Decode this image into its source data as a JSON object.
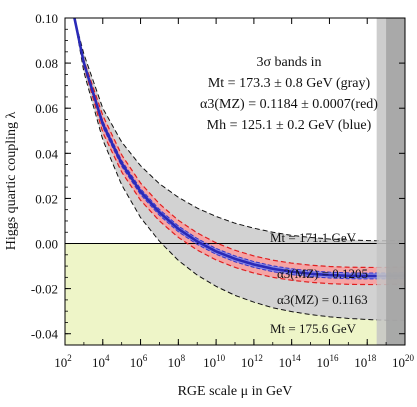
{
  "chart_data": {
    "type": "line",
    "title": "",
    "xlabel": "RGE scale μ in GeV",
    "ylabel": "Higgs quartic coupling λ",
    "xscale": "log10",
    "xlim": [
      100,
      1e+20
    ],
    "ylim": [
      -0.045,
      0.1
    ],
    "grid": false,
    "x_ticks": [
      {
        "exp": 2,
        "label": "10",
        "sup": "2"
      },
      {
        "exp": 4,
        "label": "10",
        "sup": "4"
      },
      {
        "exp": 6,
        "label": "10",
        "sup": "6"
      },
      {
        "exp": 8,
        "label": "10",
        "sup": "8"
      },
      {
        "exp": 10,
        "label": "10",
        "sup": "10"
      },
      {
        "exp": 12,
        "label": "10",
        "sup": "12"
      },
      {
        "exp": 14,
        "label": "10",
        "sup": "14"
      },
      {
        "exp": 16,
        "label": "10",
        "sup": "16"
      },
      {
        "exp": 18,
        "label": "10",
        "sup": "18"
      },
      {
        "exp": 20,
        "label": "10",
        "sup": "20"
      }
    ],
    "y_ticks": [
      {
        "value": 0.1,
        "label": "0.10"
      },
      {
        "value": 0.08,
        "label": "0.08"
      },
      {
        "value": 0.06,
        "label": "0.06"
      },
      {
        "value": 0.04,
        "label": "0.04"
      },
      {
        "value": 0.02,
        "label": "0.02"
      },
      {
        "value": 0.0,
        "label": "0.00"
      },
      {
        "value": -0.02,
        "label": "-0.02"
      },
      {
        "value": -0.04,
        "label": "-0.04"
      }
    ],
    "instability_region": {
      "below_lambda": 0.0,
      "color": "#eef5c8"
    },
    "planck_bands": [
      {
        "x_from": 3.16e+18,
        "x_to": 1e+20,
        "color": "#c4c4c4"
      },
      {
        "x_from": 1e+19,
        "x_to": 1e+20,
        "color": "#a2a2a2"
      }
    ],
    "series": [
      {
        "role": "gray band upper edge",
        "values_key": "Mt = 171.1 GeV",
        "color": "#111111",
        "dash": "dashed",
        "points": [
          [
            2.5,
            0.1
          ],
          [
            3,
            0.084
          ],
          [
            4,
            0.06
          ],
          [
            5,
            0.045
          ],
          [
            6,
            0.0345
          ],
          [
            7,
            0.0265
          ],
          [
            8,
            0.0205
          ],
          [
            9,
            0.0157
          ],
          [
            10,
            0.012
          ],
          [
            11,
            0.009
          ],
          [
            12,
            0.0068
          ],
          [
            13,
            0.005
          ],
          [
            14,
            0.0036
          ],
          [
            15,
            0.0027
          ],
          [
            16,
            0.002
          ],
          [
            17,
            0.0016
          ],
          [
            18,
            0.0013
          ],
          [
            19,
            0.0012
          ],
          [
            20,
            0.0012
          ]
        ]
      },
      {
        "role": "gray band lower edge",
        "values_key": "Mt = 175.6 GeV",
        "color": "#111111",
        "dash": "dashed",
        "points": [
          [
            2.5,
            0.1
          ],
          [
            3,
            0.076
          ],
          [
            4,
            0.046
          ],
          [
            5,
            0.026
          ],
          [
            6,
            0.0115
          ],
          [
            7,
            0.001
          ],
          [
            8,
            -0.0075
          ],
          [
            9,
            -0.014
          ],
          [
            10,
            -0.019
          ],
          [
            11,
            -0.023
          ],
          [
            12,
            -0.026
          ],
          [
            13,
            -0.0285
          ],
          [
            14,
            -0.0302
          ],
          [
            15,
            -0.0315
          ],
          [
            16,
            -0.0325
          ],
          [
            17,
            -0.0332
          ],
          [
            18,
            -0.0337
          ],
          [
            19,
            -0.034
          ],
          [
            20,
            -0.034
          ]
        ]
      },
      {
        "role": "central value",
        "color": "#2a2ab8",
        "dash": "solid",
        "points": [
          [
            2.5,
            0.1
          ],
          [
            3,
            0.08
          ],
          [
            4,
            0.053
          ],
          [
            5,
            0.0355
          ],
          [
            6,
            0.023
          ],
          [
            7,
            0.0138
          ],
          [
            8,
            0.0065
          ],
          [
            9,
            0.0009
          ],
          [
            10,
            -0.0035
          ],
          [
            11,
            -0.0068
          ],
          [
            12,
            -0.0093
          ],
          [
            13,
            -0.0112
          ],
          [
            14,
            -0.0125
          ],
          [
            15,
            -0.0134
          ],
          [
            16,
            -0.014
          ],
          [
            17,
            -0.0143
          ],
          [
            18,
            -0.0144
          ],
          [
            19,
            -0.0144
          ],
          [
            20,
            -0.0142
          ]
        ]
      }
    ],
    "band_halfwidths": {
      "blue": 0.0013,
      "red": 0.0038
    },
    "reference_line": {
      "y": 0.0,
      "color": "#000000"
    },
    "legend": {
      "placement": "top-right",
      "lines": [
        {
          "text": "3σ bands in"
        },
        {
          "text": "Mt = 173.3 ± 0.8 GeV (gray)"
        },
        {
          "text": "α3(MZ) = 0.1184 ± 0.0007(red)"
        },
        {
          "text": "Mh = 125.1 ± 0.2 GeV (blue)"
        }
      ]
    },
    "annotations": [
      {
        "text": "Mt = 171.1 GeV",
        "color": "#000000"
      },
      {
        "text": "α3(MZ) = 0.1205",
        "color": "#e02020"
      },
      {
        "text": "α3(MZ) = 0.1163",
        "color": "#e02020"
      },
      {
        "text": "Mt = 175.6 GeV",
        "color": "#000000"
      }
    ],
    "colors": {
      "gray_band": "#d2d2d2",
      "red_band": "#f5a5a5",
      "blue_band": "#8a8ae6",
      "axis": "#000000"
    }
  }
}
